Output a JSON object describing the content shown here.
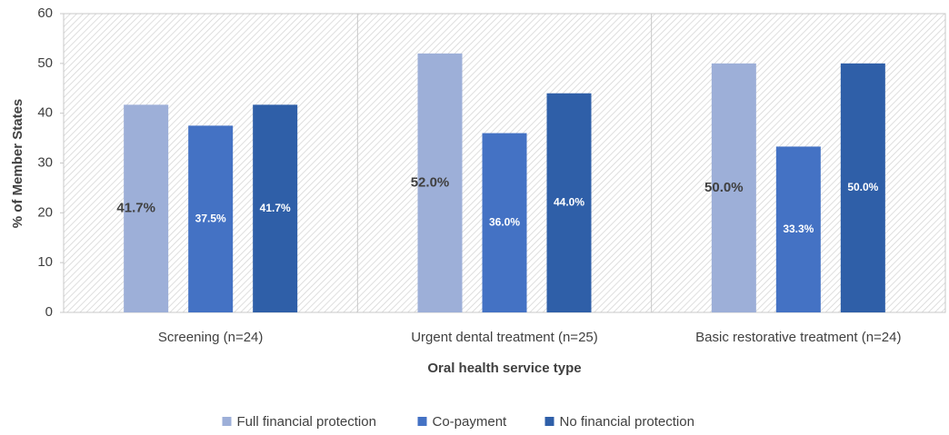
{
  "chart_data": {
    "type": "bar",
    "x_label": "Oral health service type",
    "y_label": "% of Member States",
    "categories": [
      "Screening (n=24)",
      "Urgent dental treatment (n=25)",
      "Basic restorative treatment (n=24)"
    ],
    "series": [
      {
        "name": "Full financial protection",
        "color": "#9dafd8",
        "values": [
          41.7,
          52.0,
          50.0
        ],
        "value_labels": [
          "41.7%",
          "52.0%",
          "50.0%"
        ]
      },
      {
        "name": "Co-payment",
        "color": "#4472c4",
        "values": [
          37.5,
          36.0,
          33.3
        ],
        "value_labels": [
          "37.5%",
          "36.0%",
          "33.3%"
        ]
      },
      {
        "name": "No financial protection",
        "color": "#2f5fa8",
        "values": [
          41.7,
          44.0,
          50.0
        ],
        "value_labels": [
          "41.7%",
          "44.0%",
          "50.0%"
        ]
      }
    ],
    "ylim": [
      0,
      60
    ],
    "yticks": [
      0,
      10,
      20,
      30,
      40,
      50,
      60
    ],
    "grid": false,
    "legend": "bottom"
  }
}
